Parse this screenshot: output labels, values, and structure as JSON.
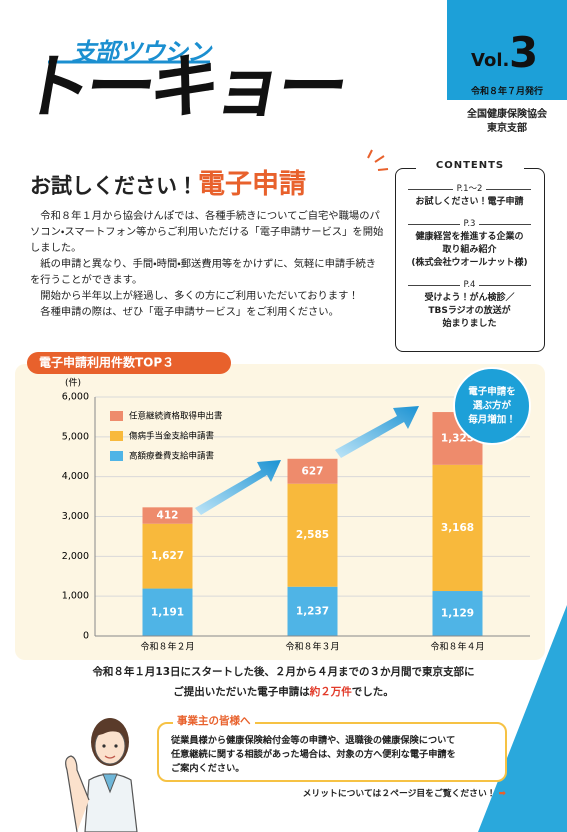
{
  "header": {
    "series_name": "支部ツウシン",
    "title": "トーキョー",
    "vol_label": "Vol.",
    "vol_number": "3",
    "issued": "令和８年７月発行",
    "publisher": [
      "全国健康保険協会",
      "東京支部"
    ]
  },
  "article": {
    "title_lead": "お試しください！",
    "title_main": "電子申請",
    "paragraphs": [
      "令和８年１月から協会けんぽでは、各種手続きについてご自宅や職場のパソコン・スマートフォン等からご利用いただける「電子申請サービス」を開始しました。",
      "紙の申請と異なり、手間・時間・郵送費用等をかけずに、気軽に申請手続きを行うことができます。",
      "開始から半年以上が経過し、多くの方にご利用いただいております！",
      "各種申請の際は、ぜひ「電子申請サービス」をご利用ください。"
    ]
  },
  "contents": {
    "heading": "CONTENTS",
    "items": [
      {
        "page": "P.1～2",
        "lines": [
          "お試しください！電子申請"
        ]
      },
      {
        "page": "P.3",
        "lines": [
          "健康経営を推進する企業の",
          "取り組み紹介",
          "(株式会社ウオールナット様)"
        ]
      },
      {
        "page": "P.4",
        "lines": [
          "受けよう！がん検診／",
          "TBSラジオの放送が",
          "始まりました"
        ]
      }
    ]
  },
  "chart_data": {
    "type": "bar",
    "stacked": true,
    "title": "電子申請利用件数TOP３",
    "y_unit": "(件)",
    "categories": [
      "令和８年２月",
      "令和８年３月",
      "令和８年４月"
    ],
    "series": [
      {
        "name": "高額療養費支給申請書",
        "color": "#4fb4e6",
        "values": [
          1191,
          1237,
          1129
        ],
        "value_labels": [
          "1,191",
          "1,237",
          "1,129"
        ]
      },
      {
        "name": "傷病手当金支給申請書",
        "color": "#f8b93c",
        "values": [
          1627,
          2585,
          3168
        ],
        "value_labels": [
          "1,627",
          "2,585",
          "3,168"
        ]
      },
      {
        "name": "任意継続資格取得申出書",
        "color": "#ee8b6c",
        "values": [
          412,
          627,
          1325
        ],
        "value_labels": [
          "412",
          "627",
          "1,325"
        ]
      }
    ],
    "ylim": [
      0,
      6000
    ],
    "yticks": [
      0,
      {
        "value": 1000,
        "label": "1,000"
      },
      {
        "value": 2000,
        "label": "2,000"
      },
      {
        "value": 3000,
        "label": "3,000"
      },
      {
        "value": 4000,
        "label": "4,000"
      },
      {
        "value": 5000,
        "label": "5,000"
      },
      {
        "value": 6000,
        "label": "6,000"
      }
    ],
    "grid": true,
    "callout": [
      "電子申請を",
      "選ぶ方が",
      "毎月増加！"
    ]
  },
  "summary": {
    "line1": "令和８年１月13日にスタートした後、２月から４月までの３か月間で東京支部に",
    "line2_before": "ご提出いただいた電子申請は",
    "highlight": "約２万件",
    "line2_after": "でした。"
  },
  "notice": {
    "heading": "事業主の皆様へ",
    "lines": [
      "従業員様から健康保険給付金等の申請や、退職後の健康保険について",
      "任意継続に関する相談があった場合は、対象の方へ便利な電子申請を",
      "ご案内ください。"
    ]
  },
  "footer_note": "メリットについては２ページ目をご覧ください！"
}
